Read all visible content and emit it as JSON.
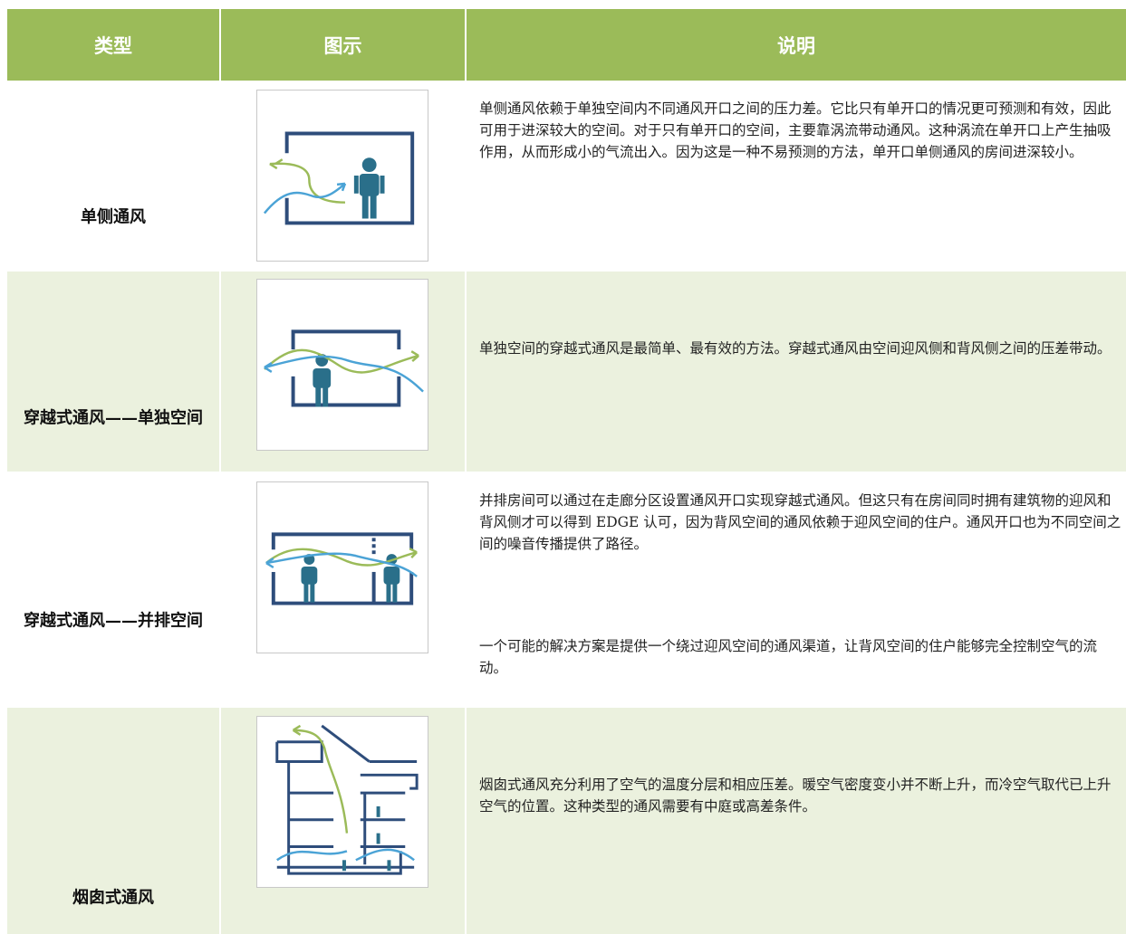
{
  "table": {
    "header": [
      "类型",
      "图示",
      "说明"
    ],
    "rows": [
      {
        "type": "单侧通风",
        "description": [
          "单侧通风依赖于单独空间内不同通风开口之间的压力差。它比只有单开口的情况更可预测和有效，因此可用于进深较大的空间。对于只有单开口的空间，主要靠涡流带动通风。这种涡流在单开口上产生抽吸作用，从而形成小的气流出入。因为这是一种不易预测的方法，单开口单侧通风的房间进深较小。"
        ]
      },
      {
        "type": "穿越式通风——单独空间",
        "description": [
          "单独空间的穿越式通风是最简单、最有效的方法。穿越式通风由空间迎风侧和背风侧之间的压差带动。"
        ]
      },
      {
        "type": "穿越式通风——并排空间",
        "description": [
          "并排房间可以通过在走廊分区设置通风开口实现穿越式通风。但这只有在房间同时拥有建筑物的迎风和背风侧才可以得到 EDGE 认可，因为背风空间的通风依赖于迎风空间的住户。通风开口也为不同空间之间的噪音传播提供了路径。",
          "一个可能的解决方案是提供一个绕过迎风空间的通风渠道，让背风空间的住户能够完全控制空气的流动。"
        ]
      },
      {
        "type": "烟囱式通风",
        "description": [
          "烟囱式通风充分利用了空气的温度分层和相应压差。暖空气密度变小并不断上升，而冷空气取代已上升空气的位置。这种类型的通风需要有中庭或高差条件。"
        ]
      }
    ]
  }
}
